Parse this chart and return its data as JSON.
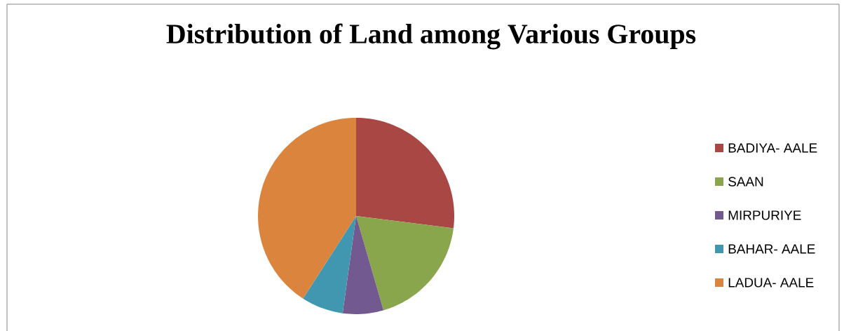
{
  "chart_data": {
    "type": "pie",
    "title": "Distribution of Land among Various Groups",
    "categories": [
      "BADIYA- AALE",
      "SAAN",
      "MIRPURIYE",
      "BAHAR- AALE",
      "LADUA- AALE"
    ],
    "values": [
      27,
      18.5,
      6.7,
      6.9,
      40.9
    ],
    "colors": [
      "#a84744",
      "#8aa64c",
      "#725a91",
      "#4097af",
      "#db843d"
    ],
    "legend": "right"
  }
}
